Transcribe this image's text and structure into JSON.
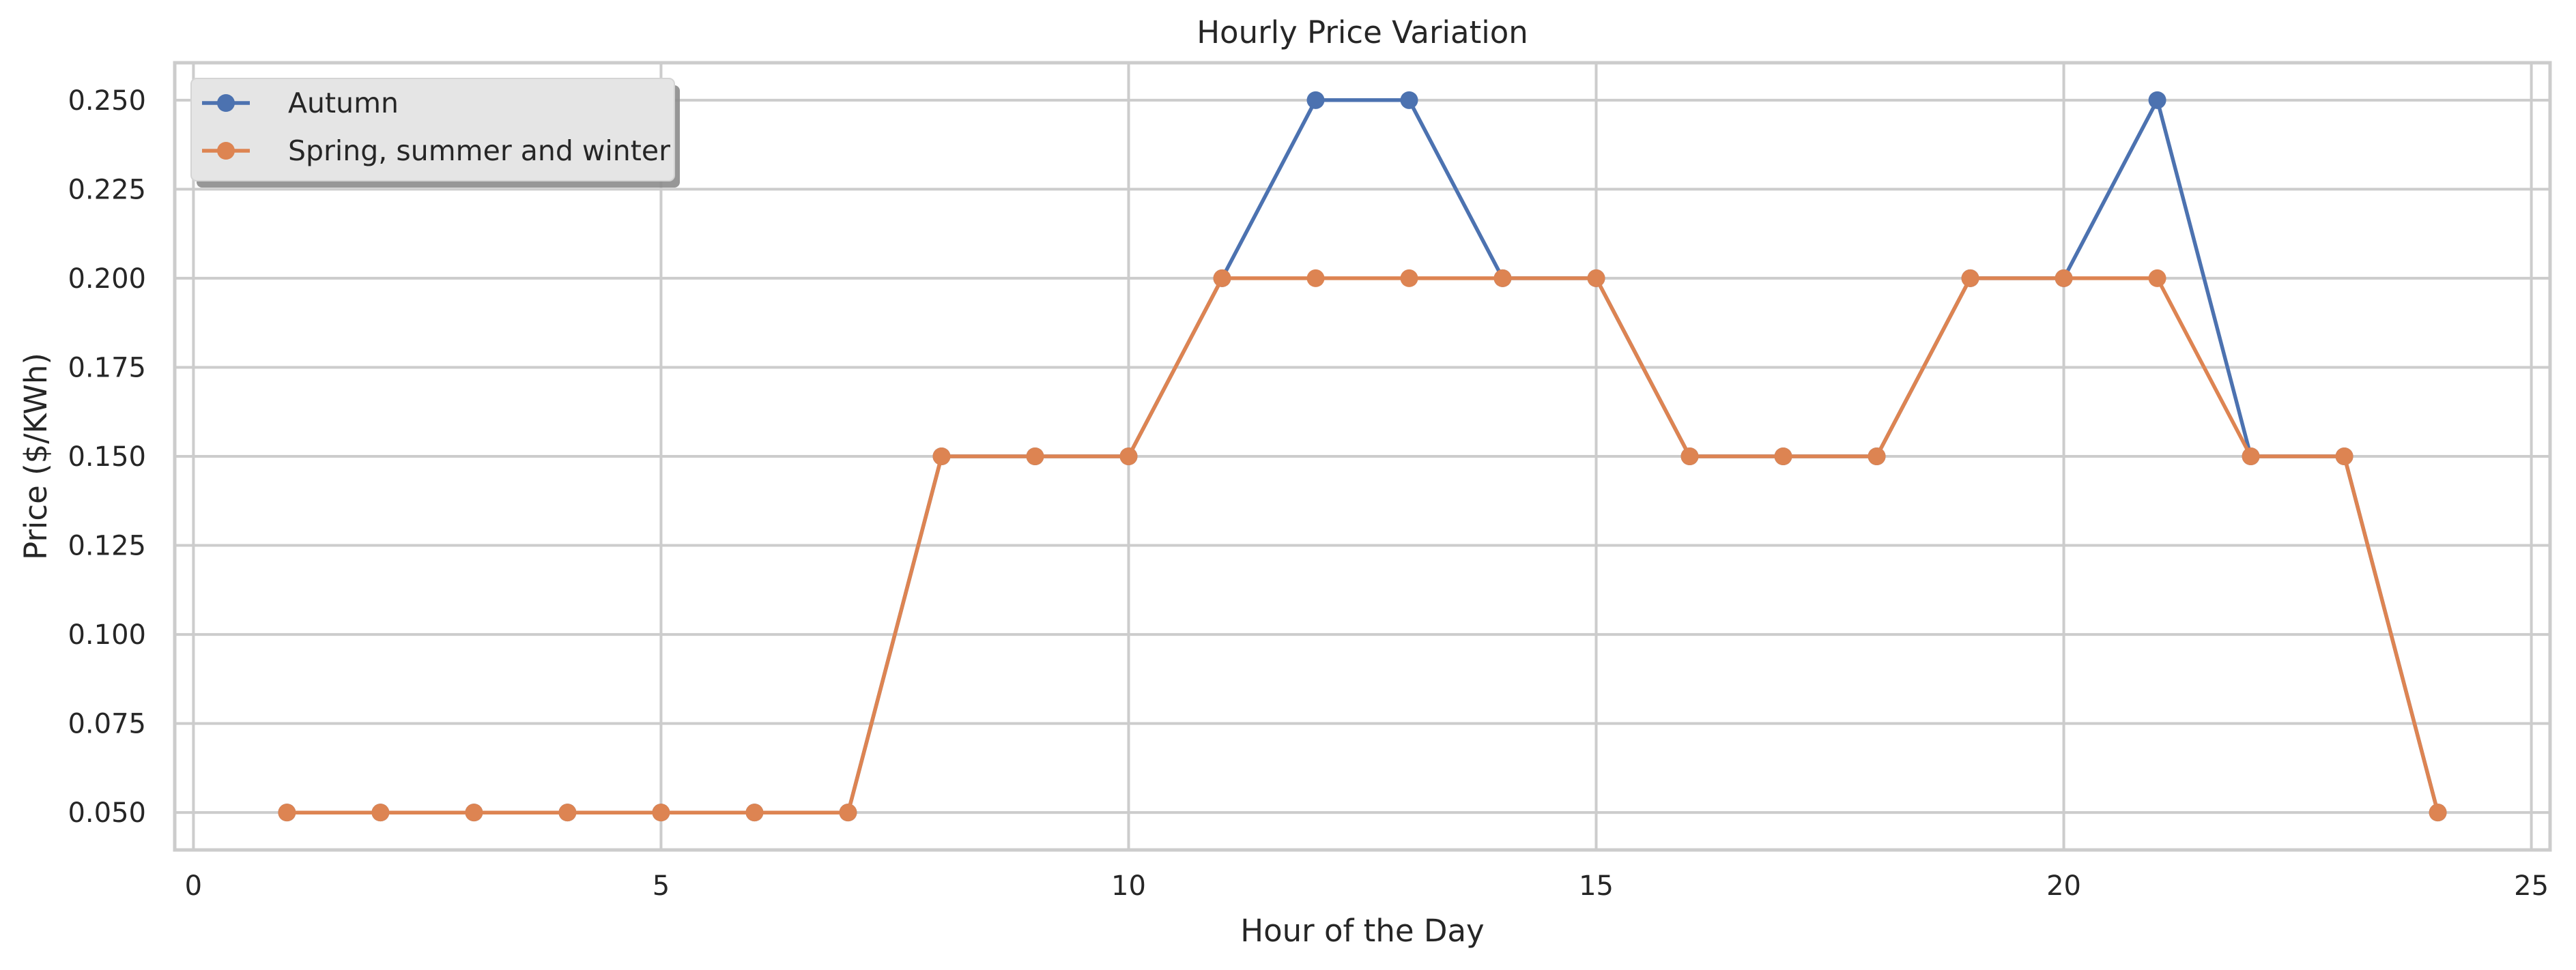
{
  "chart_data": {
    "type": "line",
    "title": "Hourly Price Variation",
    "xlabel": "Hour of the Day",
    "ylabel": "Price ($/KWh)",
    "xlim": [
      -0.2,
      25.2
    ],
    "ylim": [
      0.0395,
      0.2605
    ],
    "grid": true,
    "legend_position": "top-left",
    "x_ticks": [
      0,
      5,
      10,
      15,
      20,
      25
    ],
    "x_tick_labels": [
      "0",
      "5",
      "10",
      "15",
      "20",
      "25"
    ],
    "y_ticks": [
      0.05,
      0.075,
      0.1,
      0.125,
      0.15,
      0.175,
      0.2,
      0.225,
      0.25
    ],
    "y_tick_labels": [
      "0.050",
      "0.075",
      "0.100",
      "0.125",
      "0.150",
      "0.175",
      "0.200",
      "0.225",
      "0.250"
    ],
    "x": [
      1,
      2,
      3,
      4,
      5,
      6,
      7,
      8,
      9,
      10,
      11,
      12,
      13,
      14,
      15,
      16,
      17,
      18,
      19,
      20,
      21,
      22,
      23,
      24
    ],
    "series": [
      {
        "name": "Autumn",
        "color": "#4c72b0",
        "values": [
          0.05,
          0.05,
          0.05,
          0.05,
          0.05,
          0.05,
          0.05,
          0.15,
          0.15,
          0.15,
          0.2,
          0.25,
          0.25,
          0.2,
          0.2,
          0.15,
          0.15,
          0.15,
          0.2,
          0.2,
          0.25,
          0.15,
          0.15,
          0.05
        ]
      },
      {
        "name": "Spring, summer and winter",
        "color": "#dd8452",
        "values": [
          0.05,
          0.05,
          0.05,
          0.05,
          0.05,
          0.05,
          0.05,
          0.15,
          0.15,
          0.15,
          0.2,
          0.2,
          0.2,
          0.2,
          0.2,
          0.15,
          0.15,
          0.15,
          0.2,
          0.2,
          0.2,
          0.15,
          0.15,
          0.05
        ]
      }
    ]
  },
  "colors": {
    "grid": "#cccccc",
    "frame": "#cccccc",
    "text": "#262626",
    "legend_bg": "#e5e5e5"
  }
}
